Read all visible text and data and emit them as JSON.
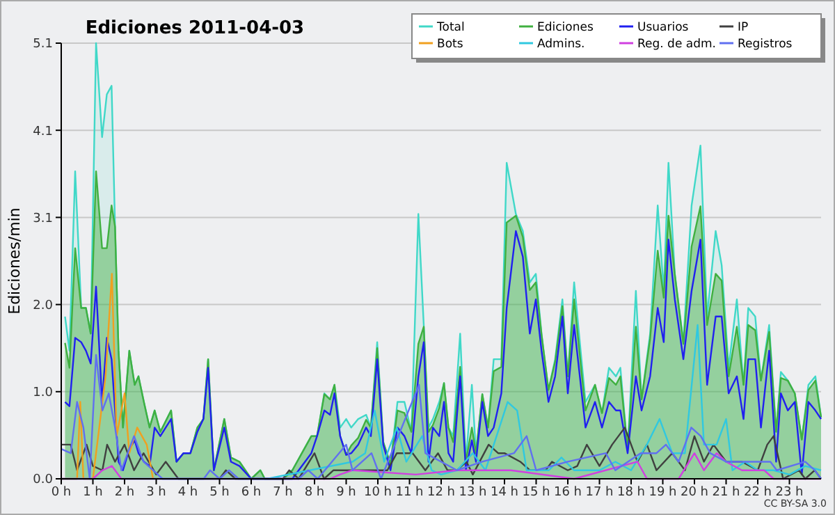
{
  "chart_data": {
    "type": "line",
    "title": "Ediciones  2011-04-03",
    "ylabel": "Ediciones/min",
    "annotations": [
      "CC BY-SA 3.0"
    ],
    "legend": "top right",
    "grid": "y",
    "marker": "none",
    "line_style": "solid",
    "xlim": [
      0,
      24
    ],
    "xticks": [
      {
        "value": 0,
        "label": "0 h"
      },
      {
        "value": 1,
        "label": "1 h"
      },
      {
        "value": 2,
        "label": "2 h"
      },
      {
        "value": 3,
        "label": "3 h"
      },
      {
        "value": 4,
        "label": "4 h"
      },
      {
        "value": 5,
        "label": "5 h"
      },
      {
        "value": 6,
        "label": "6 h"
      },
      {
        "value": 7,
        "label": "7 h"
      },
      {
        "value": 8,
        "label": "8 h"
      },
      {
        "value": 9,
        "label": "9 h"
      },
      {
        "value": 10,
        "label": "10 h"
      },
      {
        "value": 11,
        "label": "11 h"
      },
      {
        "value": 12,
        "label": "12 h"
      },
      {
        "value": 13,
        "label": "13 h"
      },
      {
        "value": 14,
        "label": "14 h"
      },
      {
        "value": 15,
        "label": "15 h"
      },
      {
        "value": 16,
        "label": "16 h"
      },
      {
        "value": 17,
        "label": "17 h"
      },
      {
        "value": 18,
        "label": "18 h"
      },
      {
        "value": 19,
        "label": "19 h"
      },
      {
        "value": 20,
        "label": "20 h"
      },
      {
        "value": 21,
        "label": "21 h"
      },
      {
        "value": 22,
        "label": "22 h"
      },
      {
        "value": 23,
        "label": "23 h"
      }
    ],
    "ylim": [
      0,
      5.1
    ],
    "yticks": [
      {
        "value": 0,
        "label": "0.0"
      },
      {
        "value": 1.02,
        "label": "1.0"
      },
      {
        "value": 2.04,
        "label": "2.0"
      },
      {
        "value": 3.06,
        "label": "3.1"
      },
      {
        "value": 4.08,
        "label": "4.1"
      },
      {
        "value": 5.1,
        "label": "5.1"
      }
    ],
    "x": [
      0.12,
      0.26,
      0.44,
      0.63,
      0.78,
      0.93,
      1.1,
      1.29,
      1.44,
      1.59,
      1.7,
      1.81,
      1.95,
      2.15,
      2.32,
      2.44,
      2.61,
      2.79,
      2.95,
      3.13,
      3.47,
      3.64,
      3.86,
      4.08,
      4.3,
      4.49,
      4.64,
      4.82,
      5.15,
      5.36,
      5.63,
      6.0,
      6.29,
      6.43,
      7.02,
      7.3,
      7.9,
      8.08,
      8.31,
      8.49,
      8.63,
      8.81,
      9.0,
      9.16,
      9.38,
      9.63,
      9.78,
      9.98,
      10.17,
      10.4,
      10.62,
      10.84,
      11.06,
      11.28,
      11.45,
      11.6,
      11.74,
      11.94,
      12.09,
      12.23,
      12.38,
      12.6,
      12.78,
      12.97,
      13.1,
      13.3,
      13.48,
      13.66,
      13.9,
      14.07,
      14.36,
      14.58,
      14.8,
      14.99,
      15.17,
      15.39,
      15.6,
      15.83,
      16.0,
      16.2,
      16.56,
      16.86,
      17.08,
      17.3,
      17.52,
      17.66,
      17.89,
      18.15,
      18.33,
      18.6,
      18.84,
      19.03,
      19.18,
      19.38,
      19.65,
      19.91,
      20.19,
      20.4,
      20.67,
      20.86,
      21.08,
      21.34,
      21.55,
      21.7,
      21.92,
      22.1,
      22.36,
      22.58,
      22.73,
      22.95,
      23.17,
      23.39,
      23.6,
      23.82,
      24.0
    ],
    "series": [
      {
        "name": "Total",
        "type": "area",
        "color": "#40d8c8",
        "values": [
          1.9,
          1.5,
          3.6,
          2.0,
          2.0,
          1.7,
          5.1,
          4.0,
          4.5,
          4.6,
          2.95,
          1.5,
          0.6,
          1.5,
          1.1,
          1.2,
          0.9,
          0.6,
          0.8,
          0.55,
          0.8,
          0.2,
          0.3,
          0.3,
          0.6,
          0.7,
          1.4,
          0.1,
          0.7,
          0.25,
          0.2,
          0,
          0.1,
          0,
          0,
          0.1,
          0.5,
          0.5,
          1.0,
          0.93,
          1.1,
          0.6,
          0.7,
          0.6,
          0.7,
          0.75,
          0.6,
          1.6,
          0.43,
          0.17,
          0.9,
          0.9,
          0.55,
          3.1,
          1.8,
          0.6,
          0.7,
          0.9,
          1.12,
          0.6,
          0.5,
          1.7,
          0.2,
          1.1,
          0.3,
          0.99,
          0.6,
          1.4,
          1.4,
          3.7,
          3.1,
          2.9,
          2.3,
          2.4,
          1.7,
          1.04,
          1.4,
          2.1,
          1.2,
          2.3,
          0.9,
          1.1,
          0.77,
          1.3,
          1.2,
          1.3,
          0.34,
          2.2,
          0.93,
          1.7,
          3.2,
          2.2,
          3.7,
          2.4,
          1.6,
          3.2,
          3.9,
          1.9,
          2.9,
          2.5,
          1.3,
          2.1,
          1.1,
          2.0,
          1.9,
          1.15,
          1.8,
          0.55,
          1.25,
          1.15,
          1.0,
          0.46,
          1.1,
          1.2,
          0.72
        ]
      },
      {
        "name": "Ediciones",
        "type": "area",
        "color": "#40b040",
        "values": [
          1.59,
          1.3,
          2.7,
          2.0,
          2.0,
          1.7,
          3.6,
          2.7,
          2.7,
          3.2,
          2.95,
          1.5,
          0.6,
          1.5,
          1.1,
          1.2,
          0.9,
          0.6,
          0.8,
          0.55,
          0.8,
          0.2,
          0.3,
          0.3,
          0.6,
          0.7,
          1.4,
          0.1,
          0.7,
          0.25,
          0.2,
          0,
          0.1,
          0,
          0,
          0.1,
          0.5,
          0.5,
          0.99,
          0.93,
          1.1,
          0.5,
          0.28,
          0.39,
          0.48,
          0.69,
          0.6,
          1.53,
          0.43,
          0.17,
          0.8,
          0.77,
          0.55,
          1.58,
          1.78,
          0.55,
          0.63,
          0.83,
          1.12,
          0.6,
          0.43,
          1.31,
          0.2,
          0.6,
          0.3,
          0.99,
          0.6,
          1.26,
          1.31,
          3.0,
          3.08,
          2.83,
          2.21,
          2.3,
          1.69,
          1.04,
          1.37,
          2.02,
          1.2,
          2.1,
          0.8,
          1.1,
          0.77,
          1.18,
          1.1,
          1.2,
          0.34,
          1.78,
          0.93,
          1.64,
          2.67,
          2.12,
          3.08,
          2.39,
          1.58,
          2.72,
          3.19,
          1.8,
          2.4,
          2.32,
          1.2,
          1.78,
          1.1,
          1.8,
          1.74,
          1.15,
          1.72,
          0.55,
          1.18,
          1.15,
          1.0,
          0.46,
          1.04,
          1.15,
          0.72
        ]
      },
      {
        "name": "Usuarios",
        "color": "#2020f0",
        "values": [
          0.9,
          0.85,
          1.65,
          1.6,
          1.5,
          1.35,
          2.25,
          0.9,
          1.65,
          1.4,
          0.8,
          0.2,
          0.1,
          0.35,
          0.45,
          0.3,
          0.2,
          0.15,
          0.6,
          0.5,
          0.7,
          0.2,
          0.3,
          0.3,
          0.55,
          0.7,
          1.3,
          0.1,
          0.6,
          0.2,
          0.15,
          0,
          0,
          0,
          0,
          0,
          0.3,
          0.5,
          0.8,
          0.75,
          1.0,
          0.5,
          0.28,
          0.3,
          0.4,
          0.6,
          0.5,
          1.4,
          0.4,
          0.1,
          0.6,
          0.5,
          0.3,
          1.2,
          1.6,
          0.2,
          0.6,
          0.5,
          0.9,
          0.3,
          0.2,
          1.2,
          0.1,
          0.45,
          0.2,
          0.9,
          0.5,
          0.6,
          1.0,
          2.0,
          2.9,
          2.6,
          1.7,
          2.1,
          1.5,
          0.9,
          1.2,
          1.9,
          1.0,
          1.8,
          0.6,
          0.9,
          0.6,
          0.9,
          0.8,
          0.8,
          0.3,
          1.2,
          0.8,
          1.2,
          2.0,
          1.6,
          2.8,
          2.1,
          1.4,
          2.2,
          2.8,
          1.1,
          1.9,
          1.9,
          1.0,
          1.2,
          0.7,
          1.4,
          1.4,
          0.6,
          1.5,
          0.2,
          1.0,
          0.8,
          0.9,
          0.05,
          0.9,
          0.8,
          0.7
        ]
      },
      {
        "name": "IP",
        "color": "#404040",
        "x": [
          0,
          0.3,
          0.5,
          0.8,
          1.0,
          1.3,
          1.45,
          1.7,
          2.0,
          2.3,
          2.6,
          3.0,
          3.3,
          3.7,
          5.0,
          5.2,
          5.5,
          7.0,
          7.2,
          7.5,
          8.0,
          8.3,
          8.6,
          9.5,
          10.3,
          10.6,
          11.1,
          11.5,
          11.9,
          12.2,
          12.5,
          12.8,
          13.0,
          13.5,
          13.8,
          14.0,
          14.5,
          14.8,
          15.3,
          15.5,
          16.0,
          16.3,
          16.6,
          17.0,
          17.4,
          17.8,
          18.2,
          18.5,
          18.8,
          19.3,
          19.7,
          20.0,
          20.3,
          20.6,
          21.0,
          21.5,
          22.0,
          22.3,
          22.5,
          22.8,
          23.3,
          23.5,
          23.8,
          24
        ],
        "values": [
          0.4,
          0.4,
          0.1,
          0.4,
          0.15,
          0.1,
          0.4,
          0.2,
          0.4,
          0.1,
          0.3,
          0.05,
          0.2,
          0,
          0,
          0.1,
          0,
          0,
          0.1,
          0,
          0.3,
          0,
          0.1,
          0.1,
          0.1,
          0.3,
          0.3,
          0.1,
          0.3,
          0.1,
          0.1,
          0.2,
          0.05,
          0.4,
          0.3,
          0.3,
          0.2,
          0.1,
          0.1,
          0.2,
          0.1,
          0.15,
          0.4,
          0.15,
          0.4,
          0.6,
          0.2,
          0.4,
          0.1,
          0.3,
          0.1,
          0.5,
          0.2,
          0.4,
          0.2,
          0.2,
          0.1,
          0.4,
          0.5,
          0,
          0.1,
          0,
          0.1,
          0
        ]
      },
      {
        "name": "Bots",
        "color": "#f0a020",
        "x": [
          0,
          0.5,
          0.6,
          0.7,
          1.0,
          1.2,
          1.4,
          1.6,
          1.75,
          2.0,
          2.15,
          2.4,
          2.7,
          2.9
        ],
        "values": [
          0,
          0,
          0.9,
          0,
          0,
          0.6,
          1.2,
          2.4,
          0.5,
          1.0,
          0.3,
          0.6,
          0.4,
          0
        ]
      },
      {
        "name": "Admins.",
        "color": "#30c8e0",
        "x": [
          0,
          6.5,
          9.2,
          9.6,
          9.9,
          10.2,
          10.6,
          10.9,
          11.4,
          11.7,
          12,
          12.5,
          13.0,
          13.4,
          14.1,
          14.4,
          14.7,
          15.0,
          15.4,
          15.8,
          16.2,
          17.0,
          17.5,
          18,
          18.5,
          18.9,
          19.3,
          19.7,
          20.1,
          20.3,
          20.7,
          21.0,
          21.2,
          21.6,
          22.0,
          22.5,
          23,
          23.5,
          24
        ],
        "values": [
          0,
          0,
          0.2,
          0.3,
          0.8,
          0.2,
          0.6,
          0.2,
          0.5,
          0.1,
          0.05,
          0.1,
          0.3,
          0.1,
          0.9,
          0.8,
          0.1,
          0.1,
          0.1,
          0.25,
          0.1,
          0.1,
          0.2,
          0.1,
          0.4,
          0.7,
          0.3,
          0.3,
          1.8,
          0.4,
          0.4,
          0.7,
          0.1,
          0.2,
          0.1,
          0.1,
          0.05,
          0.15,
          0.1
        ]
      },
      {
        "name": "Reg. de adm.",
        "color": "#d040e0",
        "x": [
          0,
          1.0,
          1.3,
          1.6,
          1.9,
          8.5,
          8.8,
          9.2,
          11.2,
          12.5,
          14.2,
          16.2,
          18.2,
          18.5,
          19.5,
          20.0,
          20.3,
          20.7,
          21.0,
          21.5,
          22.2,
          22.5,
          24
        ],
        "values": [
          0,
          0,
          0.1,
          0.15,
          0,
          0,
          0.05,
          0.1,
          0.05,
          0.1,
          0.1,
          0,
          0.2,
          0,
          0,
          0.3,
          0.1,
          0.3,
          0.2,
          0.1,
          0.1,
          0,
          0
        ]
      },
      {
        "name": "Registros",
        "color": "#6070f0",
        "x": [
          0,
          0.3,
          0.5,
          0.7,
          0.9,
          1.1,
          1.3,
          1.5,
          1.7,
          1.9,
          2.1,
          2.3,
          2.6,
          2.9,
          3.2,
          4.5,
          4.7,
          5.0,
          5.3,
          5.6,
          7.5,
          7.8,
          8.1,
          9.0,
          9.2,
          9.8,
          10.1,
          11.3,
          11.5,
          12.5,
          13.3,
          14.3,
          14.7,
          15,
          16,
          17.2,
          17.5,
          18.3,
          18.8,
          19.1,
          19.5,
          19.9,
          20.2,
          20.5,
          21,
          22.4,
          22.6,
          23.5,
          23.8,
          24
        ],
        "values": [
          0.35,
          0.3,
          0.9,
          0.6,
          0,
          1.45,
          0.8,
          1.0,
          0.6,
          0.1,
          0.3,
          0.5,
          0.2,
          0.1,
          0,
          0,
          0.1,
          0,
          0.1,
          0,
          0,
          0.1,
          0,
          0.4,
          0.1,
          0.3,
          0,
          1.1,
          0.3,
          0.1,
          0.2,
          0.3,
          0.5,
          0.1,
          0.2,
          0.3,
          0.1,
          0.3,
          0.3,
          0.4,
          0.2,
          0.6,
          0.5,
          0.3,
          0.2,
          0.2,
          0.1,
          0.2,
          0.1,
          0
        ]
      }
    ]
  }
}
